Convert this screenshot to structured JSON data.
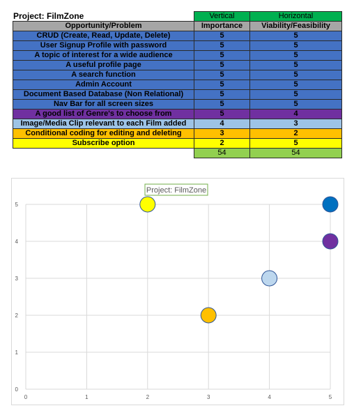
{
  "project_title": "Project: FilmZone",
  "table": {
    "header_top": [
      "Vertical",
      "Horizontal"
    ],
    "header": [
      "Opportunity/Problem",
      "Importance",
      "Viability/Feasibility"
    ],
    "rows": [
      {
        "label": "CRUD (Create, Read, Update, Delete)",
        "importance": "5",
        "viability": "5",
        "color": "#4472c4"
      },
      {
        "label": "User Signup Profile with password",
        "importance": "5",
        "viability": "5",
        "color": "#4472c4"
      },
      {
        "label": "A topic of interest for a wide audience",
        "importance": "5",
        "viability": "5",
        "color": "#4472c4"
      },
      {
        "label": "A useful profile page",
        "importance": "5",
        "viability": "5",
        "color": "#4472c4"
      },
      {
        "label": "A search function",
        "importance": "5",
        "viability": "5",
        "color": "#4472c4"
      },
      {
        "label": "Admin Account",
        "importance": "5",
        "viability": "5",
        "color": "#4472c4"
      },
      {
        "label": "Document Based Database (Non Relational)",
        "importance": "5",
        "viability": "5",
        "color": "#4472c4"
      },
      {
        "label": "Nav Bar for all screen sizes",
        "importance": "5",
        "viability": "5",
        "color": "#4472c4"
      },
      {
        "label": "A good list of Genre's to choose from",
        "importance": "5",
        "viability": "4",
        "color": "#7030a0"
      },
      {
        "label": "Image/Media Clip relevant to each Film added",
        "importance": "4",
        "viability": "3",
        "color": "#9dc3e6"
      },
      {
        "label": "Conditional coding for editing and deleting",
        "importance": "3",
        "viability": "2",
        "color": "#ffc000"
      },
      {
        "label": "Subscribe option",
        "importance": "2",
        "viability": "5",
        "color": "#ffff00"
      }
    ],
    "totals": [
      "54",
      "54"
    ]
  },
  "chart_data": {
    "type": "scatter",
    "title": "Project: FilmZone",
    "xlim": [
      0,
      5
    ],
    "ylim": [
      0,
      5
    ],
    "x_ticks": [
      "0",
      "1",
      "2",
      "3",
      "4",
      "5"
    ],
    "y_ticks": [
      "0",
      "1",
      "2",
      "3",
      "4",
      "5"
    ],
    "grid": true,
    "points": [
      {
        "x": 2,
        "y": 5,
        "color": "#ffff00"
      },
      {
        "x": 3,
        "y": 2,
        "color": "#ffc000"
      },
      {
        "x": 4,
        "y": 3,
        "color": "#bdd7ee"
      },
      {
        "x": 5,
        "y": 5,
        "color": "#0070c0"
      },
      {
        "x": 5,
        "y": 4,
        "color": "#7030a0"
      }
    ]
  }
}
